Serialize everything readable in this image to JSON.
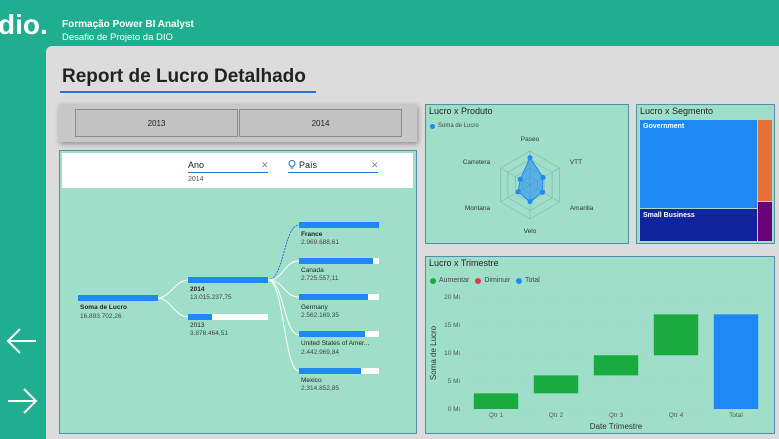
{
  "header": {
    "logo_text": "dio.",
    "title": "Formação Power BI Analyst",
    "subtitle": "Desafio de Projeto da DIO"
  },
  "nav": {
    "back_icon": "arrow-left-icon",
    "forward_icon": "arrow-right-icon"
  },
  "report_title": "Report de Lucro Detalhado",
  "year_slicer": {
    "options": [
      "2013",
      "2014"
    ]
  },
  "filters": {
    "ano": {
      "label": "Ano",
      "value": "2014"
    },
    "pais": {
      "label": "País",
      "value": ""
    }
  },
  "decomposition": {
    "root": {
      "label": "Soma de Lucro",
      "value": "16.893.702,26"
    },
    "years": [
      {
        "label": "2014",
        "value": "13.015.237,75",
        "fraction": 1.0
      },
      {
        "label": "2013",
        "value": "3.878.464,51",
        "fraction": 0.3
      }
    ],
    "countries": [
      {
        "label": "France",
        "value": "2.969.688,61",
        "fraction": 1.0
      },
      {
        "label": "Canada",
        "value": "2.725.557,11",
        "fraction": 0.92
      },
      {
        "label": "Germany",
        "value": "2.562.169,35",
        "fraction": 0.86
      },
      {
        "label": "United States of Amer...",
        "value": "2.442.969,84",
        "fraction": 0.82
      },
      {
        "label": "Mexico",
        "value": "2.314.852,85",
        "fraction": 0.78
      }
    ]
  },
  "produto": {
    "title": "Lucro x Produto",
    "legend": "Soma de Lucro",
    "color": "#1e88f5"
  },
  "segmento": {
    "title": "Lucro x Segmento",
    "cells": [
      {
        "label": "Government",
        "color": "#1e88f5"
      },
      {
        "label": "Small Business",
        "color": "#12239e"
      },
      {
        "label": "",
        "color": "#e8713a"
      },
      {
        "label": "",
        "color": "#6b007b"
      }
    ]
  },
  "chart_data": [
    {
      "type": "radar",
      "title": "Lucro x Produto",
      "categories": [
        "Paseo",
        "VTT",
        "Amarilla",
        "Velo",
        "Montana",
        "Carretera"
      ],
      "series": [
        {
          "name": "Soma de Lucro",
          "values": [
            3.6,
            2.0,
            1.9,
            2.2,
            1.8,
            1.5
          ]
        }
      ],
      "rmax": 4.5
    },
    {
      "type": "waterfall",
      "title": "Lucro x Trimestre",
      "legend": [
        "Aumentar",
        "Diminuir",
        "Total"
      ],
      "colors": {
        "Aumentar": "#1aab40",
        "Diminuir": "#e8334a",
        "Total": "#1e88f5"
      },
      "categories": [
        "Qtr 1",
        "Qtr 2",
        "Qtr 3",
        "Qtr 4",
        "Total"
      ],
      "values": [
        2.8,
        3.2,
        3.6,
        7.3,
        16.9
      ],
      "xlabel": "Date Trimestre",
      "ylabel": "Soma de Lucro",
      "yticks": [
        "0 Mi",
        "5 Mi",
        "10 Mi",
        "15 Mi",
        "20 Mi"
      ],
      "ylim": [
        0,
        20
      ]
    }
  ]
}
